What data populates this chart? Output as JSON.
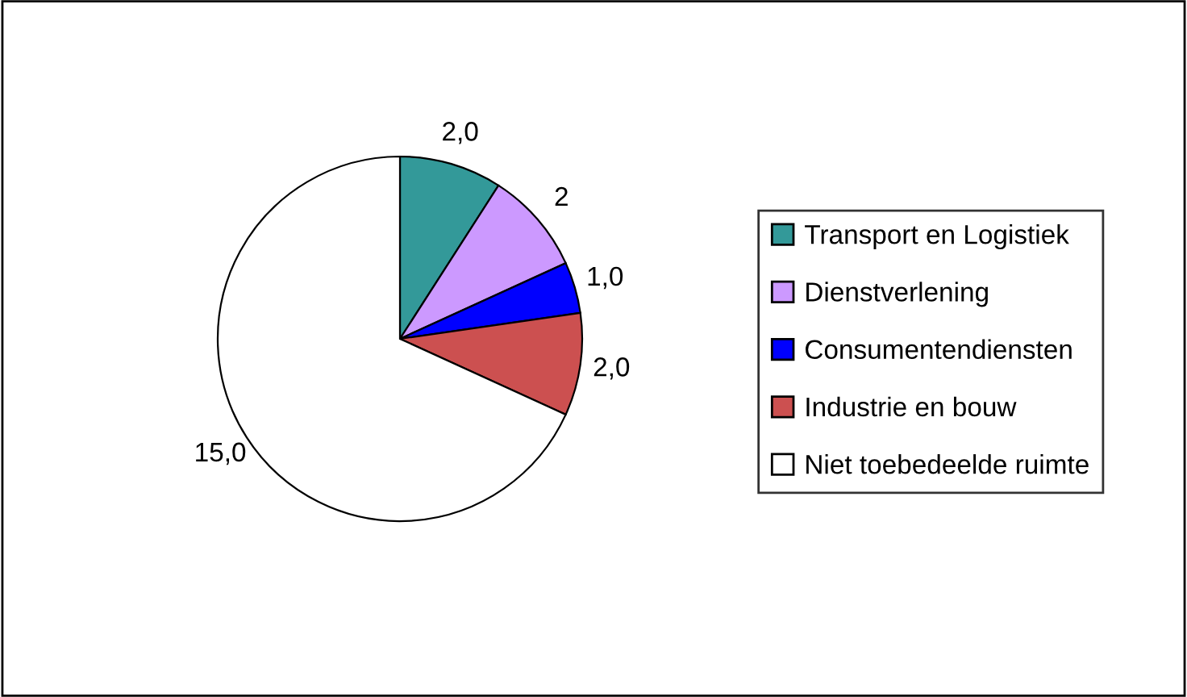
{
  "chart_data": {
    "type": "pie",
    "categories": [
      "Transport en Logistiek",
      "Dienstverlening",
      "Consumentendiensten",
      "Industrie en bouw",
      "Niet toebedeelde ruimte"
    ],
    "values": [
      2,
      2,
      1,
      2,
      15
    ],
    "colors": [
      "#339999",
      "#cc99ff",
      "#0000ff",
      "#cc5050",
      "#ffffff"
    ],
    "value_labels": [
      "2,0",
      "2",
      "1,0",
      "2,0",
      "15,0"
    ],
    "legend": "right"
  }
}
